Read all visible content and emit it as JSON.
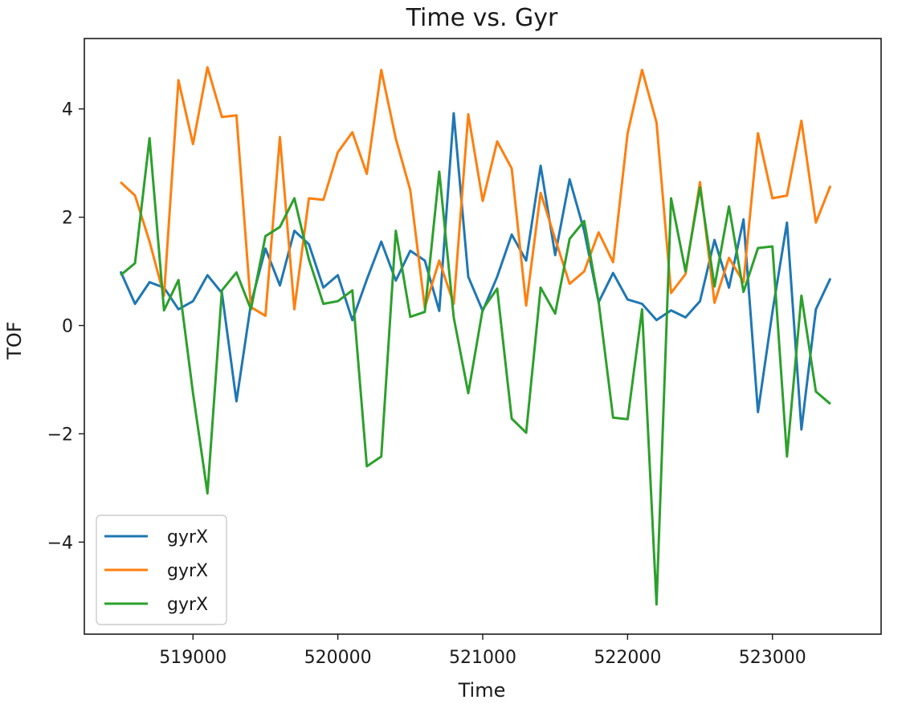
{
  "chart_data": {
    "type": "line",
    "title": "Time vs. Gyr",
    "xlabel": "Time",
    "ylabel": "TOF",
    "xlim": [
      518250,
      523750
    ],
    "ylim": [
      -5.7,
      5.3
    ],
    "xticks": [
      519000,
      520000,
      521000,
      522000,
      523000
    ],
    "yticks": [
      -4,
      -2,
      0,
      2,
      4
    ],
    "grid": false,
    "legend_position": "lower-left",
    "x": [
      518500,
      518600,
      518700,
      518800,
      518900,
      519000,
      519100,
      519200,
      519300,
      519400,
      519500,
      519600,
      519700,
      519800,
      519900,
      520000,
      520100,
      520200,
      520300,
      520400,
      520500,
      520600,
      520700,
      520800,
      520900,
      521000,
      521100,
      521200,
      521300,
      521400,
      521500,
      521600,
      521700,
      521800,
      521900,
      522000,
      522100,
      522200,
      522300,
      522400,
      522500,
      522600,
      522700,
      522800,
      522900,
      523000,
      523100,
      523200,
      523300,
      523400,
      523500
    ],
    "series": [
      {
        "name": "gyrX",
        "color": "#1f77b4",
        "values": [
          1.0,
          0.4,
          0.8,
          0.7,
          0.3,
          0.45,
          0.93,
          0.6,
          -1.4,
          0.4,
          1.42,
          0.74,
          1.75,
          1.5,
          0.7,
          0.93,
          0.1,
          0.85,
          1.55,
          0.83,
          1.38,
          1.2,
          0.27,
          3.92,
          0.9,
          0.27,
          0.9,
          1.68,
          1.2,
          2.95,
          1.3,
          2.7,
          1.75,
          0.43,
          0.97,
          0.48,
          0.4,
          0.1,
          0.28,
          0.15,
          0.45,
          1.58,
          0.7,
          1.96,
          -1.6,
          0.25,
          1.9,
          -1.92,
          0.3,
          0.87,
          null
        ]
      },
      {
        "name": "gyrX",
        "color": "#ff7f0e",
        "values": [
          2.65,
          2.4,
          1.55,
          0.55,
          4.53,
          3.35,
          4.77,
          3.85,
          3.88,
          0.34,
          0.18,
          3.48,
          0.3,
          2.35,
          2.32,
          3.2,
          3.57,
          2.8,
          4.72,
          3.45,
          2.5,
          0.33,
          1.2,
          0.4,
          3.9,
          2.3,
          3.4,
          2.9,
          0.37,
          2.45,
          1.6,
          0.77,
          1.0,
          1.72,
          1.17,
          3.55,
          4.72,
          3.75,
          0.6,
          0.95,
          2.65,
          0.42,
          1.25,
          0.8,
          3.55,
          2.35,
          2.4,
          3.78,
          1.9,
          2.58,
          null
        ]
      },
      {
        "name": "gyrX",
        "color": "#2ca02c",
        "values": [
          0.93,
          1.15,
          3.46,
          0.28,
          0.84,
          -1.25,
          -3.1,
          0.65,
          0.98,
          0.3,
          1.65,
          1.82,
          2.35,
          1.22,
          0.4,
          0.45,
          0.65,
          -2.6,
          -2.42,
          1.75,
          0.16,
          0.25,
          2.84,
          0.15,
          -1.25,
          0.3,
          0.68,
          -1.72,
          -1.98,
          0.7,
          0.22,
          1.6,
          1.93,
          0.44,
          -1.7,
          -1.73,
          0.3,
          -5.15,
          2.35,
          1.0,
          2.55,
          0.72,
          2.2,
          0.62,
          1.43,
          1.46,
          -2.42,
          0.55,
          -1.22,
          -1.45,
          null
        ]
      }
    ]
  }
}
